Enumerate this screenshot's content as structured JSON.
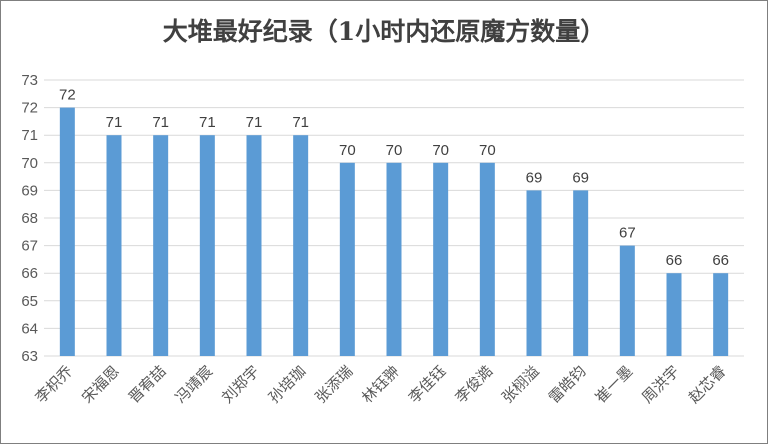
{
  "chart_data": {
    "type": "bar",
    "title": "大堆最好纪录（1小时内还原魔方数量）",
    "xlabel": "",
    "ylabel": "",
    "ylim": [
      63,
      73
    ],
    "yticks": [
      63,
      64,
      65,
      66,
      67,
      68,
      69,
      70,
      71,
      72,
      73
    ],
    "grid": true,
    "legend": "none",
    "categories": [
      "李枳乔",
      "宋福恩",
      "晋宥喆",
      "冯靖宸",
      "刘郑宇",
      "孙培珈",
      "张添瑞",
      "林钰翀",
      "李佳钰",
      "李俊澔",
      "张栩溢",
      "雷皓钧",
      "崔一墨",
      "周洪宇",
      "赵芯睿"
    ],
    "values": [
      72,
      71,
      71,
      71,
      71,
      71,
      70,
      70,
      70,
      70,
      69,
      69,
      67,
      66,
      66
    ],
    "colors": {
      "bar": "#5b9bd5",
      "grid": "#d9d9d9",
      "text": "#595959"
    }
  }
}
